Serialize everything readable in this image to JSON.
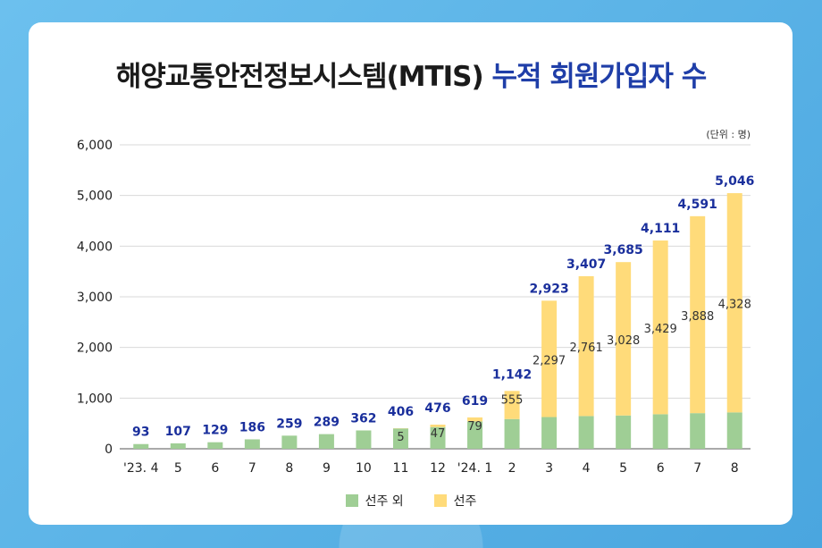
{
  "title": {
    "main": "해양교통안전정보시스템(MTIS)",
    "highlight": "누적 회원가입자 수"
  },
  "unit_label": "(단위 : 명)",
  "colors": {
    "non_crew": "#9fce95",
    "crew": "#ffdb7a",
    "total_label": "#1a2f9c",
    "grid": "#d9d9d9"
  },
  "legend": {
    "non_crew": "선주 외",
    "crew": "선주"
  },
  "chart_data": {
    "type": "bar",
    "stacked": true,
    "categories": [
      "'23. 4",
      "5",
      "6",
      "7",
      "8",
      "9",
      "10",
      "11",
      "12",
      "'24. 1",
      "2",
      "3",
      "4",
      "5",
      "6",
      "7",
      "8"
    ],
    "series": [
      {
        "name": "선주 외",
        "values": [
          93,
          107,
          129,
          186,
          259,
          289,
          362,
          401,
          429,
          540,
          587,
          626,
          646,
          657,
          682,
          703,
          718
        ]
      },
      {
        "name": "선주",
        "values": [
          0,
          0,
          0,
          0,
          0,
          0,
          0,
          5,
          47,
          79,
          555,
          2297,
          2761,
          3028,
          3429,
          3888,
          4328
        ]
      }
    ],
    "crew_labels": [
      "",
      "",
      "",
      "",
      "",
      "",
      "",
      "5",
      "47",
      "79",
      "555",
      "2,297",
      "2,761",
      "3,028",
      "3,429",
      "3,888",
      "4,328"
    ],
    "totals": [
      93,
      107,
      129,
      186,
      259,
      289,
      362,
      406,
      476,
      619,
      1142,
      2923,
      3407,
      3685,
      4111,
      4591,
      5046
    ],
    "total_labels": [
      "93",
      "107",
      "129",
      "186",
      "259",
      "289",
      "362",
      "406",
      "476",
      "619",
      "1,142",
      "2,923",
      "3,407",
      "3,685",
      "4,111",
      "4,591",
      "5,046"
    ],
    "yticks": [
      "0",
      "1,000",
      "2,000",
      "3,000",
      "4,000",
      "5,000",
      "6,000"
    ],
    "ylim": [
      0,
      6000
    ],
    "grid": true,
    "legend_position": "bottom"
  }
}
